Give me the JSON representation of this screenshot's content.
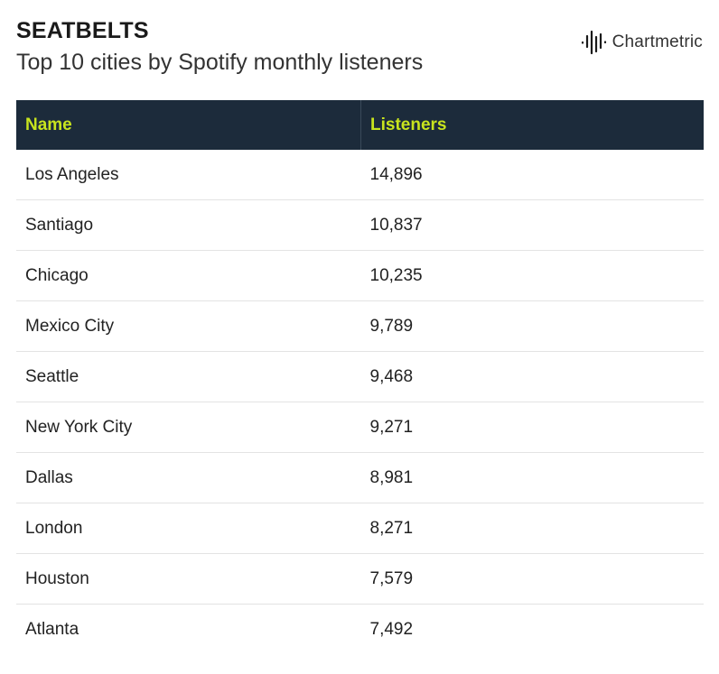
{
  "header": {
    "title": "SEATBELTS",
    "subtitle": "Top 10 cities by Spotify monthly listeners"
  },
  "brand": {
    "name": "Chartmetric",
    "logo_icon": "soundwave-icon"
  },
  "colors": {
    "header_bg": "#1c2b3b",
    "header_text": "#c8e41e",
    "row_divider": "#e3e3e3"
  },
  "chart_data": {
    "type": "table",
    "title": "SEATBELTS",
    "subtitle": "Top 10 cities by Spotify monthly listeners",
    "columns": [
      "Name",
      "Listeners"
    ],
    "rows": [
      [
        "Los Angeles",
        "14,896"
      ],
      [
        "Santiago",
        "10,837"
      ],
      [
        "Chicago",
        "10,235"
      ],
      [
        "Mexico City",
        "9,789"
      ],
      [
        "Seattle",
        "9,468"
      ],
      [
        "New York City",
        "9,271"
      ],
      [
        "Dallas",
        "8,981"
      ],
      [
        "London",
        "8,271"
      ],
      [
        "Houston",
        "7,579"
      ],
      [
        "Atlanta",
        "7,492"
      ]
    ]
  }
}
